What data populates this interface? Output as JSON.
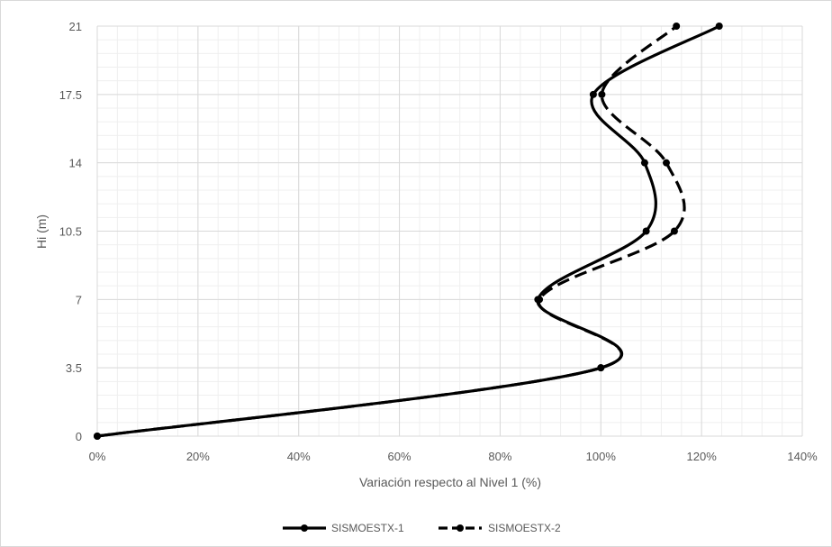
{
  "chart_data": {
    "type": "line",
    "xlabel": "Variación respecto al Nivel 1 (%)",
    "ylabel": "Hi (m)",
    "xlim": [
      0,
      1.4
    ],
    "ylim": [
      0,
      21
    ],
    "x_ticks": [
      0,
      0.2,
      0.4,
      0.6,
      0.8,
      1.0,
      1.2,
      1.4
    ],
    "x_tick_labels": [
      "0%",
      "20%",
      "40%",
      "60%",
      "80%",
      "100%",
      "120%",
      "140%"
    ],
    "y_ticks": [
      0,
      3.5,
      7,
      10.5,
      14,
      17.5,
      21
    ],
    "y_tick_labels": [
      "0",
      "3.5",
      "7",
      "10.5",
      "14",
      "17.5",
      "21"
    ],
    "grid": true,
    "smooth": true,
    "legend_position": "bottom",
    "series": [
      {
        "name": "SISMOESTX-1",
        "style": "solid",
        "color": "#000000",
        "points": [
          [
            0,
            0
          ],
          [
            1.0,
            3.5
          ],
          [
            0.875,
            7
          ],
          [
            1.09,
            10.5
          ],
          [
            1.087,
            14
          ],
          [
            0.985,
            17.5
          ],
          [
            1.235,
            21
          ]
        ]
      },
      {
        "name": "SISMOESTX-2",
        "style": "dashed",
        "color": "#000000",
        "points": [
          [
            0,
            0
          ],
          [
            1.0,
            3.5
          ],
          [
            0.878,
            7
          ],
          [
            1.146,
            10.5
          ],
          [
            1.13,
            14
          ],
          [
            1.002,
            17.5
          ],
          [
            1.15,
            21
          ]
        ]
      }
    ]
  }
}
